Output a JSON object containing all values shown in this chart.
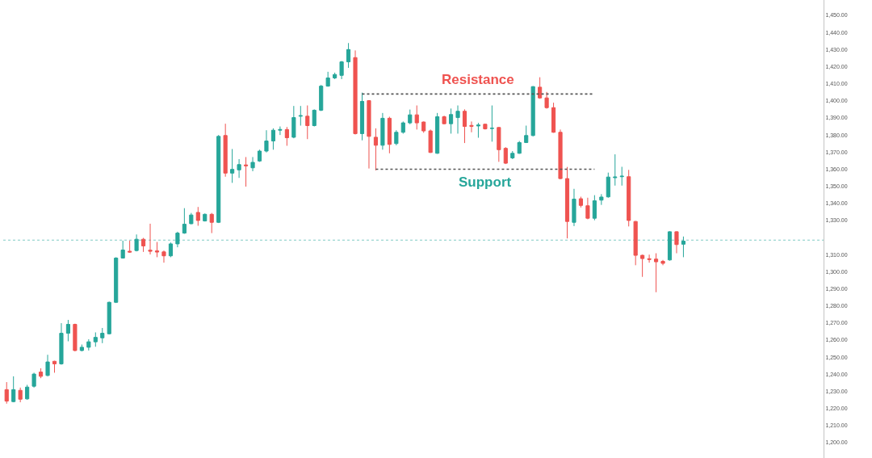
{
  "chart_data": {
    "type": "candlestick",
    "categories": [
      null,
      null,
      null,
      null,
      null,
      null,
      null,
      null,
      null,
      null,
      null,
      null,
      null,
      null,
      null,
      null,
      null,
      null,
      null,
      null,
      null,
      null,
      null,
      null,
      null,
      null,
      null,
      null,
      null,
      null,
      null,
      null,
      null,
      null,
      null,
      null,
      null,
      null,
      null,
      null,
      null,
      null,
      null,
      null,
      null,
      null,
      null,
      null,
      null,
      null,
      null,
      null,
      null,
      null,
      null,
      null,
      null,
      null,
      null,
      null,
      null,
      null,
      null,
      null,
      null,
      null,
      null,
      null,
      null,
      null,
      null,
      null,
      null,
      null,
      null,
      null,
      null,
      null,
      null,
      null,
      null,
      null,
      null,
      null,
      null,
      null,
      null,
      null,
      null,
      null,
      null,
      null,
      null,
      null,
      null,
      null,
      null,
      null,
      null,
      null,
      null,
      null,
      null,
      null,
      null,
      null,
      null,
      null,
      null,
      null,
      null,
      null,
      null,
      null,
      null,
      null,
      null,
      null,
      null,
      null
    ],
    "ohlc": [
      [
        1231.0,
        1235.4,
        1222.8,
        1224.3
      ],
      [
        1224.0,
        1238.8,
        1223.6,
        1231.0
      ],
      [
        1230.6,
        1232.2,
        1223.6,
        1225.4
      ],
      [
        1225.6,
        1233.8,
        1225.1,
        1232.5
      ],
      [
        1233.0,
        1240.9,
        1232.2,
        1240.1
      ],
      [
        1241.3,
        1243.5,
        1237.7,
        1238.8
      ],
      [
        1239.3,
        1251.4,
        1238.8,
        1247.2
      ],
      [
        1247.6,
        1247.9,
        1240.9,
        1246.1
      ],
      [
        1246.1,
        1269.9,
        1245.6,
        1264.0
      ],
      [
        1264.0,
        1271.8,
        1259.3,
        1269.2
      ],
      [
        1269.2,
        1269.6,
        1253.4,
        1253.9
      ],
      [
        1253.9,
        1257.4,
        1253.4,
        1255.8
      ],
      [
        1255.8,
        1260.5,
        1253.9,
        1259.0
      ],
      [
        1259.0,
        1264.5,
        1256.1,
        1261.6
      ],
      [
        1261.3,
        1267.1,
        1258.2,
        1264.0
      ],
      [
        1263.7,
        1282.5,
        1263.3,
        1282.1
      ],
      [
        1282.1,
        1308.5,
        1281.7,
        1308.0
      ],
      [
        1308.0,
        1318.2,
        1307.7,
        1312.7
      ],
      [
        1312.0,
        1318.2,
        1311.1,
        1311.5
      ],
      [
        1312.4,
        1321.8,
        1311.9,
        1319.0
      ],
      [
        1319.0,
        1319.8,
        1311.6,
        1315.1
      ],
      [
        1312.6,
        1328.1,
        1310.1,
        1312.0
      ],
      [
        1312.2,
        1317.4,
        1308.5,
        1311.5
      ],
      [
        1311.6,
        1312.4,
        1305.3,
        1309.3
      ],
      [
        1309.3,
        1317.1,
        1308.5,
        1316.3
      ],
      [
        1316.3,
        1323.4,
        1314.3,
        1322.6
      ],
      [
        1322.6,
        1337.2,
        1322.2,
        1327.8
      ],
      [
        1328.1,
        1334.4,
        1327.8,
        1333.2
      ],
      [
        1334.7,
        1337.9,
        1326.9,
        1330.0
      ],
      [
        1329.7,
        1334.1,
        1329.4,
        1333.6
      ],
      [
        1333.6,
        1334.4,
        1322.6,
        1328.9
      ],
      [
        1328.9,
        1380.0,
        1328.5,
        1379.2
      ],
      [
        1379.7,
        1386.6,
        1355.6,
        1357.7
      ],
      [
        1357.7,
        1371.8,
        1352.0,
        1359.9
      ],
      [
        1359.6,
        1365.9,
        1354.9,
        1362.7
      ],
      [
        1362.5,
        1367.1,
        1349.8,
        1362.0
      ],
      [
        1360.8,
        1367.1,
        1358.8,
        1364.0
      ],
      [
        1364.8,
        1371.4,
        1364.3,
        1370.6
      ],
      [
        1370.6,
        1382.8,
        1369.8,
        1376.5
      ],
      [
        1376.5,
        1383.9,
        1371.4,
        1382.8
      ],
      [
        1382.8,
        1385.0,
        1380.0,
        1383.2
      ],
      [
        1383.2,
        1384.7,
        1373.7,
        1378.4
      ],
      [
        1378.7,
        1397.0,
        1378.1,
        1390.2
      ],
      [
        1391.0,
        1397.0,
        1385.5,
        1391.3
      ],
      [
        1391.0,
        1397.3,
        1377.6,
        1385.5
      ],
      [
        1385.5,
        1395.0,
        1385.0,
        1394.5
      ],
      [
        1394.5,
        1409.3,
        1394.0,
        1408.6
      ],
      [
        1408.6,
        1417.0,
        1408.3,
        1413.4
      ],
      [
        1413.4,
        1416.5,
        1412.7,
        1415.4
      ],
      [
        1414.9,
        1423.3,
        1412.7,
        1422.8
      ],
      [
        1422.8,
        1433.8,
        1419.3,
        1430.0
      ],
      [
        1425.3,
        1429.5,
        1380.3,
        1380.8
      ],
      [
        1380.8,
        1404.8,
        1376.9,
        1399.7
      ],
      [
        1400.1,
        1400.4,
        1360.4,
        1379.2
      ],
      [
        1378.7,
        1383.9,
        1359.3,
        1374.0
      ],
      [
        1374.0,
        1392.9,
        1371.4,
        1389.8
      ],
      [
        1389.8,
        1390.7,
        1369.3,
        1374.5
      ],
      [
        1375.0,
        1382.8,
        1374.0,
        1381.6
      ],
      [
        1381.6,
        1387.9,
        1380.8,
        1387.1
      ],
      [
        1387.1,
        1394.9,
        1386.3,
        1391.8
      ],
      [
        1391.8,
        1397.3,
        1383.2,
        1387.1
      ],
      [
        1387.6,
        1387.9,
        1381.3,
        1382.4
      ],
      [
        1382.4,
        1383.2,
        1369.5,
        1369.8
      ],
      [
        1369.3,
        1392.9,
        1369.0,
        1390.7
      ],
      [
        1390.7,
        1391.3,
        1386.3,
        1386.6
      ],
      [
        1386.6,
        1395.5,
        1380.8,
        1392.0
      ],
      [
        1390.2,
        1397.3,
        1380.8,
        1393.9
      ],
      [
        1393.9,
        1395.0,
        1375.3,
        1385.0
      ],
      [
        1385.6,
        1387.9,
        1381.6,
        1385.1
      ],
      [
        1385.3,
        1387.1,
        1378.4,
        1385.8
      ],
      [
        1386.3,
        1386.6,
        1383.2,
        1383.6
      ],
      [
        1383.8,
        1397.3,
        1376.1,
        1384.0
      ],
      [
        1384.4,
        1384.7,
        1364.3,
        1371.4
      ],
      [
        1372.2,
        1372.9,
        1363.0,
        1363.5
      ],
      [
        1366.6,
        1370.6,
        1365.9,
        1369.3
      ],
      [
        1369.3,
        1376.5,
        1369.0,
        1375.6
      ],
      [
        1375.6,
        1385.5,
        1375.3,
        1379.7
      ],
      [
        1379.7,
        1408.6,
        1379.2,
        1408.3
      ],
      [
        1408.0,
        1413.8,
        1401.2,
        1401.7
      ],
      [
        1401.7,
        1405.2,
        1395.4,
        1396.0
      ],
      [
        1396.0,
        1398.9,
        1381.3,
        1381.6
      ],
      [
        1381.6,
        1383.2,
        1354.1,
        1354.5
      ],
      [
        1354.5,
        1361.3,
        1319.5,
        1329.4
      ],
      [
        1328.9,
        1348.5,
        1326.7,
        1342.5
      ],
      [
        1342.7,
        1343.9,
        1337.6,
        1338.8
      ],
      [
        1338.6,
        1343.3,
        1330.7,
        1331.3
      ],
      [
        1331.3,
        1344.8,
        1330.1,
        1341.5
      ],
      [
        1341.9,
        1345.4,
        1339.1,
        1343.7
      ],
      [
        1343.8,
        1358.0,
        1343.3,
        1355.4
      ],
      [
        1355.0,
        1368.7,
        1350.4,
        1355.4
      ],
      [
        1355.6,
        1361.4,
        1350.4,
        1355.9
      ],
      [
        1355.6,
        1359.6,
        1326.5,
        1330.0
      ],
      [
        1329.4,
        1329.7,
        1303.8,
        1309.6
      ],
      [
        1309.6,
        1310.0,
        1297.0,
        1307.7
      ],
      [
        1307.6,
        1310.0,
        1305.3,
        1307.2
      ],
      [
        1307.4,
        1310.8,
        1288.0,
        1305.8
      ],
      [
        1306.1,
        1306.9,
        1303.8,
        1304.9
      ],
      [
        1306.9,
        1323.7,
        1306.5,
        1323.4
      ],
      [
        1323.4,
        1323.7,
        1310.8,
        1315.9
      ],
      [
        1316.1,
        1320.6,
        1308.5,
        1317.9
      ],
      null,
      null,
      null,
      null,
      null,
      null,
      null,
      null,
      null,
      null,
      null,
      null,
      null,
      null,
      null,
      null,
      null,
      null,
      null,
      null
    ],
    "colors": [
      "#ef5350",
      "#26a69a",
      "#ef5350",
      "#26a69a",
      "#26a69a",
      "#ef5350",
      "#26a69a",
      "#ef5350",
      "#26a69a",
      "#26a69a",
      "#ef5350",
      "#26a69a",
      "#26a69a",
      "#26a69a",
      "#26a69a",
      "#26a69a",
      "#26a69a",
      "#26a69a",
      "#ef5350",
      "#26a69a",
      "#ef5350",
      "#ef5350",
      "#ef5350",
      "#ef5350",
      "#26a69a",
      "#26a69a",
      "#26a69a",
      "#26a69a",
      "#ef5350",
      "#26a69a",
      "#ef5350",
      "#26a69a",
      "#ef5350",
      "#26a69a",
      "#26a69a",
      "#ef5350",
      "#26a69a",
      "#26a69a",
      "#26a69a",
      "#26a69a",
      "#26a69a",
      "#ef5350",
      "#26a69a",
      "#26a69a",
      "#ef5350",
      "#26a69a",
      "#26a69a",
      "#26a69a",
      "#26a69a",
      "#26a69a",
      "#26a69a",
      "#ef5350",
      "#26a69a",
      "#ef5350",
      "#ef5350",
      "#26a69a",
      "#ef5350",
      "#26a69a",
      "#26a69a",
      "#26a69a",
      "#ef5350",
      "#ef5350",
      "#ef5350",
      "#26a69a",
      "#ef5350",
      "#26a69a",
      "#26a69a",
      "#ef5350",
      "#ef5350",
      "#26a69a",
      "#ef5350",
      "#26a69a",
      "#ef5350",
      "#ef5350",
      "#26a69a",
      "#26a69a",
      "#26a69a",
      "#26a69a",
      "#ef5350",
      "#ef5350",
      "#ef5350",
      "#ef5350",
      "#ef5350",
      "#26a69a",
      "#ef5350",
      "#ef5350",
      "#26a69a",
      "#26a69a",
      "#26a69a",
      "#26a69a",
      "#26a69a",
      "#ef5350",
      "#ef5350",
      "#ef5350",
      "#ef5350",
      "#ef5350",
      "#ef5350",
      "#26a69a",
      "#ef5350",
      "#26a69a",
      null,
      null,
      null,
      null,
      null,
      null,
      null,
      null,
      null,
      null,
      null,
      null,
      null,
      null,
      null,
      null,
      null,
      null,
      null,
      null
    ],
    "series": [
      {
        "type": "line",
        "name": "Resistance",
        "color": "#555555",
        "line_style": "dotted",
        "values": [
          null,
          null,
          null,
          null,
          null,
          null,
          null,
          null,
          null,
          null,
          null,
          null,
          null,
          null,
          null,
          null,
          null,
          null,
          null,
          null,
          null,
          null,
          null,
          null,
          null,
          null,
          null,
          null,
          null,
          null,
          null,
          null,
          null,
          null,
          null,
          null,
          null,
          null,
          null,
          null,
          null,
          null,
          null,
          null,
          null,
          null,
          null,
          null,
          null,
          null,
          null,
          null,
          1404,
          1404,
          1404,
          1404,
          1404,
          1404,
          1404,
          1404,
          1404,
          1404,
          1404,
          1404,
          1404,
          1404,
          1404,
          1404,
          1404,
          1404,
          1404,
          1404,
          1404,
          1404,
          1404,
          1404,
          1404,
          1404,
          1404,
          1404,
          1404,
          1404,
          1404,
          1404,
          1404,
          1404,
          1404,
          null,
          null,
          null,
          null,
          null,
          null,
          null,
          null,
          null,
          null,
          null,
          null,
          null,
          null,
          null,
          null,
          null,
          null,
          null,
          null,
          null,
          null,
          null,
          null,
          null,
          null,
          null,
          null,
          null,
          null,
          null,
          null,
          null
        ]
      },
      {
        "type": "line",
        "name": "Support",
        "color": "#555555",
        "line_style": "dotted",
        "values": [
          null,
          null,
          null,
          null,
          null,
          null,
          null,
          null,
          null,
          null,
          null,
          null,
          null,
          null,
          null,
          null,
          null,
          null,
          null,
          null,
          null,
          null,
          null,
          null,
          null,
          null,
          null,
          null,
          null,
          null,
          null,
          null,
          null,
          null,
          null,
          null,
          null,
          null,
          null,
          null,
          null,
          null,
          null,
          null,
          null,
          null,
          null,
          null,
          null,
          null,
          null,
          null,
          null,
          null,
          1360,
          1360,
          1360,
          1360,
          1360,
          1360,
          1360,
          1360,
          1360,
          1360,
          1360,
          1360,
          1360,
          1360,
          1360,
          1360,
          1360,
          1360,
          1360,
          1360,
          1360,
          1360,
          1360,
          1360,
          1360,
          1360,
          1360,
          1360,
          1360,
          1360,
          1360,
          1360,
          1360,
          null,
          null,
          null,
          null,
          null,
          null,
          null,
          null,
          null,
          null,
          null,
          null,
          null,
          null,
          null,
          null,
          null,
          null,
          null,
          null,
          null,
          null,
          null,
          null,
          null,
          null,
          null,
          null,
          null,
          null,
          null,
          null,
          null
        ]
      }
    ],
    "ref_lines": [
      {
        "axis": "y",
        "value": 1318.5,
        "color": "#80cbc4",
        "line_style": "dotted"
      }
    ],
    "ylim": [
      1191,
      1459
    ],
    "yticks": [
      {
        "value": 1200,
        "label": "1,200.00"
      },
      {
        "value": 1210,
        "label": "1,210.00"
      },
      {
        "value": 1220,
        "label": "1,220.00"
      },
      {
        "value": 1230,
        "label": "1,230.00"
      },
      {
        "value": 1240,
        "label": "1,240.00"
      },
      {
        "value": 1250,
        "label": "1,250.00"
      },
      {
        "value": 1260,
        "label": "1,260.00"
      },
      {
        "value": 1270,
        "label": "1,270.00"
      },
      {
        "value": 1280,
        "label": "1,280.00"
      },
      {
        "value": 1290,
        "label": "1,290.00"
      },
      {
        "value": 1300,
        "label": "1,300.00"
      },
      {
        "value": 1310,
        "label": "1,310.00"
      },
      {
        "value": 1330,
        "label": "1,330.00"
      },
      {
        "value": 1340,
        "label": "1,340.00"
      },
      {
        "value": 1350,
        "label": "1,350.00"
      },
      {
        "value": 1360,
        "label": "1,360.00"
      },
      {
        "value": 1370,
        "label": "1,370.00"
      },
      {
        "value": 1380,
        "label": "1,380.00"
      },
      {
        "value": 1390,
        "label": "1,390.00"
      },
      {
        "value": 1400,
        "label": "1,400.00"
      },
      {
        "value": 1410,
        "label": "1,410.00"
      },
      {
        "value": 1420,
        "label": "1,420.00"
      },
      {
        "value": 1430,
        "label": "1,430.00"
      },
      {
        "value": 1440,
        "label": "1,440.00"
      },
      {
        "value": 1450,
        "label": "1,450.00"
      }
    ]
  }
}
